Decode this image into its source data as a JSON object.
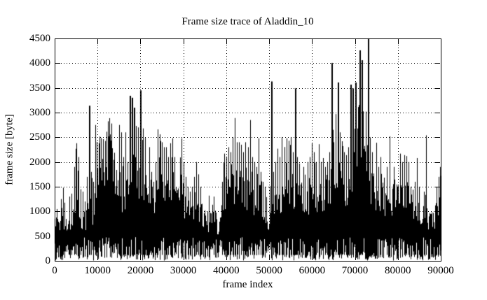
{
  "chart_data": {
    "type": "line",
    "title": "Frame size trace of Aladdin_10",
    "xlabel": "frame index",
    "ylabel": "frame size [byte]",
    "xlim": [
      0,
      90000
    ],
    "ylim": [
      0,
      4500
    ],
    "xticks": [
      0,
      10000,
      20000,
      30000,
      40000,
      50000,
      60000,
      70000,
      80000,
      90000
    ],
    "yticks": [
      0,
      500,
      1000,
      1500,
      2000,
      2500,
      3000,
      3500,
      4000,
      4500
    ],
    "grid": "dotted gridlines at every major tick, both axes",
    "legend": "none",
    "line_color": "#000000",
    "background_color": "#ffffff",
    "series": [
      {
        "name": "frame size",
        "description": "dense black impulse trace; envelope sampled every 500 frames; peak = thin spike maxima, body = top of solid mass; frame sizes in bytes",
        "x_step": 500,
        "x_start": 0,
        "peak_envelope": [
          1050,
          1100,
          950,
          1250,
          1480,
          1150,
          1050,
          1300,
          1360,
          1900,
          2380,
          2100,
          1450,
          1400,
          1200,
          1700,
          3140,
          1800,
          1600,
          2750,
          2500,
          2750,
          2600,
          2500,
          2700,
          3345,
          3180,
          2600,
          2300,
          1900,
          2750,
          2600,
          2100,
          2600,
          2000,
          3340,
          3300,
          3100,
          2730,
          2700,
          3450,
          2680,
          2495,
          2300,
          2300,
          1800,
          1600,
          2000,
          2660,
          2560,
          2400,
          2300,
          2300,
          2100,
          2380,
          2480,
          2100,
          1800,
          2000,
          2480,
          2000,
          1700,
          1500,
          1400,
          1500,
          1700,
          2000,
          1750,
          1500,
          1300,
          1200,
          1100,
          1320,
          1200,
          1300,
          1100,
          1000,
          1100,
          1600,
          2170,
          2100,
          2300,
          2200,
          2500,
          2890,
          2400,
          2400,
          2350,
          2200,
          2400,
          2300,
          2850,
          2100,
          2000,
          1900,
          2480,
          1800,
          1600,
          1500,
          1200,
          1100,
          3630,
          1800,
          2000,
          2270,
          2100,
          2500,
          2300,
          2480,
          2430,
          2500,
          2200,
          3490,
          2100,
          1970,
          2000,
          1900,
          1700,
          2000,
          2100,
          2380,
          2200,
          2000,
          2360,
          2000,
          2080,
          1900,
          2000,
          2200,
          4005,
          2400,
          2970,
          3610,
          2600,
          2420,
          2200,
          2140,
          2300,
          3565,
          3490,
          3610,
          3300,
          4260,
          4060,
          3300,
          3000,
          4500,
          2500,
          2200,
          2000,
          2390,
          1900,
          2100,
          1800,
          1700,
          1900,
          2520,
          1700,
          1900,
          1950,
          1800,
          2170,
          2000,
          2140,
          2120,
          2000,
          1500,
          1440,
          1600,
          2080,
          1500,
          1300,
          1400,
          2540,
          1300,
          1200,
          1300,
          1200,
          1500,
          1700,
          1900
        ],
        "body_envelope": [
          850,
          800,
          750,
          850,
          900,
          800,
          750,
          850,
          900,
          1000,
          1100,
          1000,
          850,
          900,
          800,
          950,
          1100,
          1100,
          1000,
          1500,
          1900,
          2100,
          2200,
          2100,
          2200,
          2400,
          2300,
          1900,
          1700,
          1400,
          1500,
          1400,
          1300,
          1400,
          1300,
          1800,
          2000,
          1900,
          1700,
          1600,
          1700,
          1600,
          1500,
          1600,
          1400,
          1200,
          1100,
          1300,
          1500,
          1500,
          1400,
          1500,
          1400,
          1300,
          1500,
          1600,
          1400,
          1300,
          1400,
          1500,
          1300,
          1100,
          1000,
          950,
          1000,
          1100,
          1200,
          1100,
          1000,
          900,
          850,
          800,
          850,
          850,
          850,
          800,
          750,
          800,
          1000,
          1300,
          1400,
          1500,
          1400,
          1500,
          1600,
          1500,
          1600,
          1500,
          1400,
          1500,
          1400,
          1500,
          1400,
          1300,
          1300,
          1400,
          1200,
          1100,
          1000,
          900,
          800,
          1200,
          1200,
          1300,
          1400,
          1300,
          1500,
          1400,
          1500,
          1500,
          1600,
          1400,
          1500,
          1400,
          1300,
          1400,
          1300,
          1200,
          1300,
          1400,
          1500,
          1400,
          1300,
          1400,
          1300,
          1350,
          1300,
          1350,
          1400,
          1600,
          1500,
          1600,
          1700,
          1600,
          1500,
          1400,
          1400,
          1500,
          1700,
          1900,
          2200,
          2600,
          2800,
          2600,
          2400,
          2200,
          2100,
          1700,
          1500,
          1400,
          1500,
          1300,
          1400,
          1300,
          1200,
          1300,
          1400,
          1200,
          1300,
          1400,
          1300,
          1300,
          1300,
          1350,
          1300,
          1250,
          1000,
          950,
          1000,
          1200,
          1000,
          900,
          950,
          1100,
          900,
          850,
          900,
          850,
          1000,
          1100,
          1200
        ],
        "baseline_min_range": [
          30,
          480
        ]
      }
    ]
  }
}
